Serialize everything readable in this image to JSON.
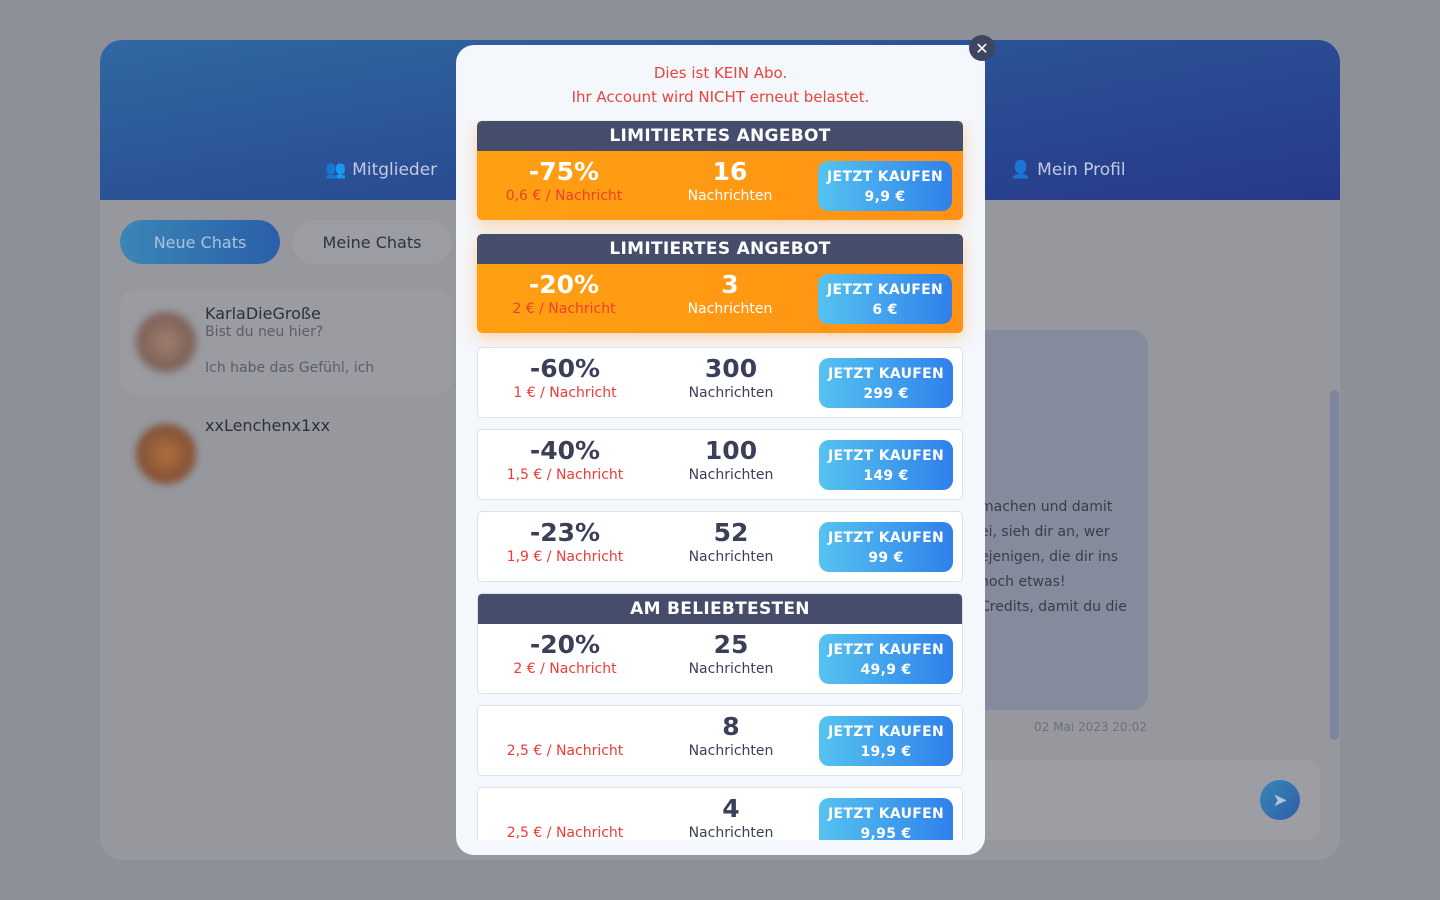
{
  "nav": {
    "members": "Mitglieder",
    "profile": "Mein Profil"
  },
  "tabs": {
    "new_chats": "Neue Chats",
    "my_chats": "Meine Chats"
  },
  "chats": [
    {
      "name": "KarlaDieGroße",
      "line1": "Bist du neu hier?",
      "line2": "Ich habe das Gefühl, ich"
    },
    {
      "name": "xxLenchenx1xx"
    }
  ],
  "message": {
    "lines": [
      "machen und damit",
      "ei, sieh dir an, wer",
      "ejenigen, die dir ins",
      "noch etwas!",
      "Credits, damit du die"
    ],
    "timestamp": "02 Mai 2023 20:02"
  },
  "modal": {
    "notice_line1": "Dies ist KEIN Abo.",
    "notice_line2": "Ihr Account wird NICHT erneut belastet.",
    "buy_label": "JETZT KAUFEN",
    "count_label": "Nachrichten",
    "offers": [
      {
        "badge": "LIMITIERTES ANGEBOT",
        "highlight": true,
        "discount": "-75%",
        "per_message": "0,6 € / Nachricht",
        "count": "16",
        "price": "9,9 €"
      },
      {
        "badge": "LIMITIERTES ANGEBOT",
        "highlight": true,
        "discount": "-20%",
        "per_message": "2 € / Nachricht",
        "count": "3",
        "price": "6 €"
      },
      {
        "discount": "-60%",
        "per_message": "1 € / Nachricht",
        "count": "300",
        "price": "299 €"
      },
      {
        "discount": "-40%",
        "per_message": "1,5 € / Nachricht",
        "count": "100",
        "price": "149 €"
      },
      {
        "discount": "-23%",
        "per_message": "1,9 € / Nachricht",
        "count": "52",
        "price": "99 €"
      },
      {
        "badge": "AM BELIEBTESTEN",
        "discount": "-20%",
        "per_message": "2 € / Nachricht",
        "count": "25",
        "price": "49,9 €"
      },
      {
        "discount": "",
        "per_message": "2,5 € / Nachricht",
        "count": "8",
        "price": "19,9 €"
      },
      {
        "discount": "",
        "per_message": "2,5 € / Nachricht",
        "count": "4",
        "price": "9,95 €"
      }
    ]
  },
  "colors": {
    "accent": "#2f80ea",
    "highlight": "#ffa012",
    "header_band": "#454d6b",
    "warning": "#e8453c"
  }
}
